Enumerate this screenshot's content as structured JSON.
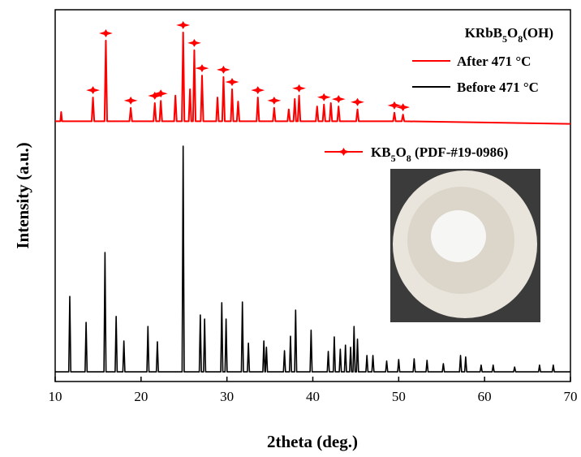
{
  "chart_data": {
    "type": "line",
    "title": "KRbB5O8(OH)",
    "x_label": "2theta (deg.)",
    "y_label": "Intensity (a.u.)",
    "xlim": [
      10,
      70
    ],
    "xticks": [
      10,
      20,
      30,
      40,
      50,
      60,
      70
    ],
    "ylim": [
      0,
      100
    ],
    "series": [
      {
        "name": "After 471 °C",
        "color": "#ff0000",
        "x": [
          10,
          10.6,
          10.7,
          10.8,
          14.25,
          14.4,
          14.55,
          15.75,
          15.9,
          16.05,
          18.65,
          18.8,
          18.95,
          21.45,
          21.6,
          21.75,
          22.15,
          22.3,
          22.45,
          23.85,
          24.0,
          24.15,
          24.75,
          24.9,
          25.05,
          25.55,
          25.7,
          25.85,
          26.05,
          26.2,
          26.35,
          26.95,
          27.1,
          27.25,
          28.75,
          28.9,
          29.05,
          29.45,
          29.6,
          29.75,
          30.45,
          30.6,
          30.75,
          31.15,
          31.3,
          31.45,
          33.45,
          33.6,
          33.75,
          35.35,
          35.5,
          35.65,
          37.05,
          37.2,
          37.35,
          37.75,
          37.9,
          38.05,
          38.25,
          38.4,
          38.55,
          40.35,
          40.5,
          40.65,
          41.15,
          41.3,
          41.45,
          41.95,
          42.1,
          42.25,
          42.85,
          43.0,
          43.15,
          45.05,
          45.2,
          45.35,
          49.35,
          49.5,
          49.65,
          50.35,
          50.5,
          50.65,
          70
        ],
        "values": [
          70,
          70,
          72.5,
          70,
          70,
          76.4,
          70,
          70,
          91.7,
          70,
          70,
          73.6,
          70,
          70,
          74.9,
          70,
          70,
          75.5,
          70,
          70,
          76.9,
          70,
          70,
          93.9,
          70,
          70,
          78.6,
          70,
          70,
          89.1,
          70,
          70,
          82.3,
          70,
          70,
          76.4,
          70,
          70,
          81.9,
          70,
          70,
          78.6,
          70,
          70,
          75.3,
          70,
          70,
          76.4,
          70,
          70,
          73.6,
          70,
          70,
          73.2,
          70,
          70,
          76.0,
          70,
          70,
          76.9,
          70,
          70,
          74.0,
          70,
          70,
          74.5,
          70,
          70,
          74.9,
          70,
          70,
          74.0,
          70,
          70,
          73.2,
          70,
          70,
          72.3,
          70,
          70,
          71.8,
          70,
          69.3
        ]
      },
      {
        "name": "Before 471 °C",
        "color": "#000000",
        "x": [
          10,
          11.58,
          11.7,
          11.82,
          13.48,
          13.6,
          13.72,
          15.68,
          15.8,
          15.92,
          16.98,
          17.1,
          17.22,
          17.88,
          18.0,
          18.12,
          20.68,
          20.8,
          20.92,
          21.78,
          21.9,
          22.02,
          24.78,
          24.9,
          25.02,
          26.78,
          26.9,
          27.02,
          27.28,
          27.4,
          27.52,
          29.28,
          29.4,
          29.52,
          29.78,
          29.9,
          30.02,
          31.68,
          31.8,
          31.92,
          32.38,
          32.5,
          32.62,
          34.18,
          34.3,
          34.42,
          34.48,
          34.6,
          34.72,
          36.58,
          36.7,
          36.82,
          37.28,
          37.4,
          37.52,
          37.88,
          38.0,
          38.12,
          39.68,
          39.8,
          39.92,
          41.68,
          41.8,
          41.92,
          42.38,
          42.5,
          42.62,
          43.08,
          43.2,
          43.32,
          43.68,
          43.8,
          43.92,
          44.28,
          44.4,
          44.52,
          44.68,
          44.8,
          44.92,
          45.08,
          45.2,
          45.32,
          46.18,
          46.3,
          46.42,
          46.88,
          47.0,
          47.12,
          48.48,
          48.6,
          48.72,
          49.88,
          50.0,
          50.12,
          51.68,
          51.8,
          51.92,
          53.18,
          53.3,
          53.42,
          55.08,
          55.2,
          55.32,
          57.08,
          57.2,
          57.32,
          57.68,
          57.8,
          57.92,
          59.48,
          59.6,
          59.72,
          60.88,
          61.0,
          61.12,
          63.38,
          63.5,
          63.62,
          66.28,
          66.4,
          66.52,
          67.88,
          68.0,
          68.12,
          70
        ],
        "values": [
          2.6,
          2.6,
          22.9,
          2.6,
          2.6,
          15.9,
          2.6,
          2.6,
          34.7,
          2.6,
          2.6,
          17.5,
          2.6,
          2.6,
          10.9,
          2.6,
          2.6,
          14.8,
          2.6,
          2.6,
          10.7,
          2.6,
          2.6,
          63.3,
          2.6,
          2.6,
          17.9,
          2.6,
          2.6,
          16.8,
          2.6,
          2.6,
          21.2,
          2.6,
          2.6,
          16.8,
          2.6,
          2.6,
          21.4,
          2.6,
          2.6,
          10.3,
          2.6,
          2.6,
          10.9,
          2.6,
          2.6,
          9.2,
          2.6,
          2.6,
          8.3,
          2.6,
          2.6,
          12.2,
          2.6,
          2.6,
          19.2,
          2.6,
          2.6,
          13.8,
          2.6,
          2.6,
          8.1,
          2.6,
          2.6,
          12.0,
          2.6,
          2.6,
          8.7,
          2.6,
          2.6,
          9.8,
          2.6,
          2.6,
          9.2,
          2.6,
          2.6,
          14.8,
          2.6,
          2.6,
          11.4,
          2.6,
          2.6,
          7.0,
          2.6,
          2.6,
          7.0,
          2.6,
          2.6,
          5.5,
          2.6,
          2.6,
          5.9,
          2.6,
          2.6,
          6.1,
          2.6,
          2.6,
          5.7,
          2.6,
          2.6,
          4.8,
          2.6,
          2.6,
          7.0,
          2.6,
          2.6,
          6.6,
          2.6,
          2.6,
          4.4,
          2.6,
          2.6,
          4.4,
          2.6,
          2.6,
          3.9,
          2.6,
          2.6,
          4.4,
          2.6,
          2.6,
          4.4,
          2.6,
          2.6
        ]
      }
    ],
    "phase_markers": {
      "name": "KB5O8 (PDF-#19-0986)",
      "color": "#ff0000",
      "x": [
        14.4,
        15.9,
        18.8,
        21.6,
        22.3,
        24.9,
        26.2,
        27.1,
        29.6,
        30.6,
        33.6,
        35.5,
        38.4,
        41.3,
        43.0,
        45.2,
        49.5,
        50.5
      ]
    }
  }
}
